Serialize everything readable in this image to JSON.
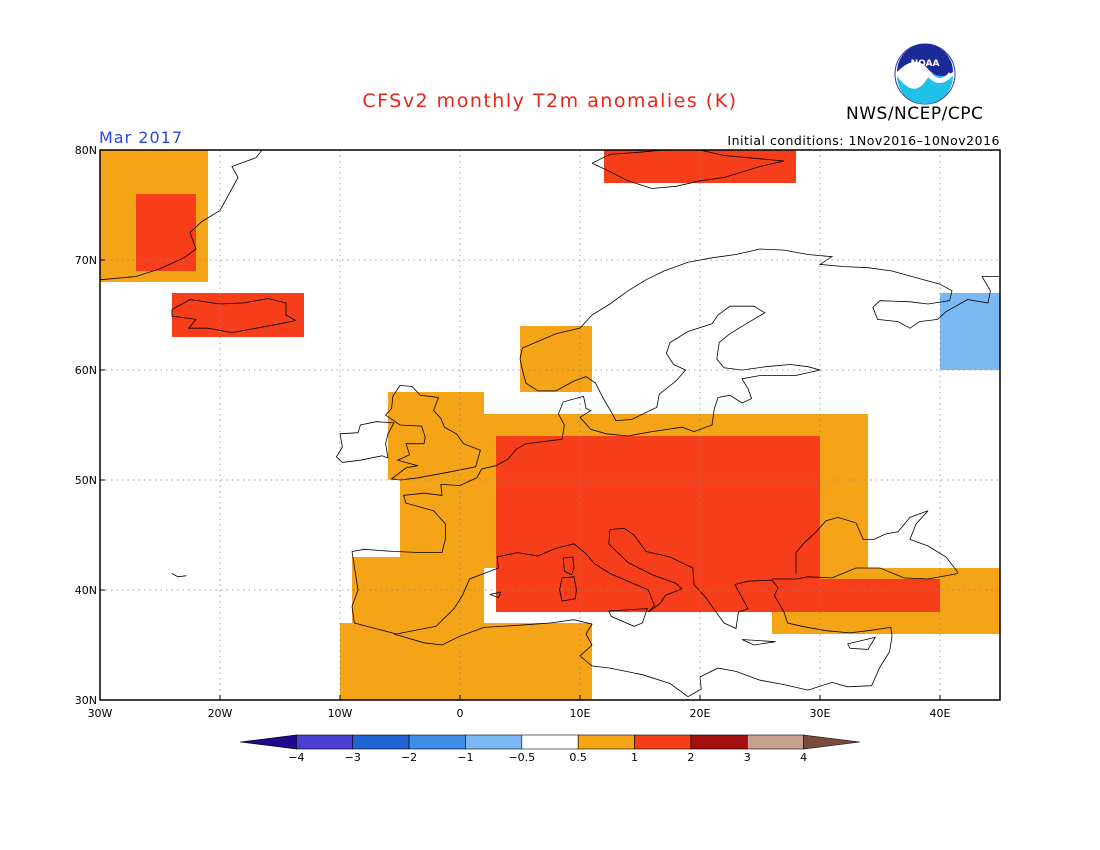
{
  "title": "CFSv2 monthly T2m anomalies (K)",
  "month": "Mar 2017",
  "initial_conditions": "Initial conditions: 1Nov2016–10Nov2016",
  "agency": "NWS/NCEP/CPC",
  "logo_text": "NOAA",
  "map": {
    "lon_range": [
      -30,
      45
    ],
    "lat_range": [
      30,
      80
    ],
    "lon_ticks": [
      "30W",
      "20W",
      "10W",
      "0",
      "10E",
      "20E",
      "30E",
      "40E"
    ],
    "lat_ticks": [
      "30N",
      "40N",
      "50N",
      "60N",
      "70N",
      "80N"
    ],
    "gridlines": "dotted"
  },
  "legend": {
    "labels": [
      "−4",
      "−3",
      "−2",
      "−1",
      "−0.5",
      "0.5",
      "1",
      "2",
      "3",
      "4"
    ],
    "colors": [
      "#1e0a8c",
      "#4a3fcf",
      "#1e62d4",
      "#3e8ee8",
      "#7cb9f4",
      "#ffffff",
      "#f5a418",
      "#f63f1a",
      "#a31010",
      "#c8a090",
      "#7a4a3a"
    ]
  },
  "colors": {
    "weak_warm": "#f5a418",
    "moderate_warm": "#f63f1a",
    "strong_warm": "#a31010",
    "weak_cold": "#7cb9f4"
  },
  "anomaly_regions": [
    {
      "level": "weak_warm",
      "area": "Greenland east coast",
      "lon": [
        -30,
        -21
      ],
      "lat": [
        68,
        80
      ]
    },
    {
      "level": "moderate_warm",
      "area": "Greenland east coast",
      "lon": [
        -27,
        -22
      ],
      "lat": [
        69,
        76
      ]
    },
    {
      "level": "moderate_warm",
      "area": "Iceland",
      "lon": [
        -24,
        -13
      ],
      "lat": [
        63,
        67
      ]
    },
    {
      "level": "moderate_warm",
      "area": "Svalbard",
      "lon": [
        12,
        28
      ],
      "lat": [
        77,
        80
      ]
    },
    {
      "level": "weak_warm",
      "area": "Norway",
      "lon": [
        5,
        11
      ],
      "lat": [
        58,
        64
      ]
    },
    {
      "level": "weak_warm",
      "area": "Britain and Ireland",
      "lon": [
        -6,
        2
      ],
      "lat": [
        50,
        58
      ]
    },
    {
      "level": "weak_warm",
      "area": "Western and central Europe",
      "lon": [
        -5,
        34
      ],
      "lat": [
        42,
        56
      ]
    },
    {
      "level": "moderate_warm",
      "area": "Central and southeastern Europe",
      "lon": [
        3,
        30
      ],
      "lat": [
        38,
        54
      ]
    },
    {
      "level": "weak_warm",
      "area": "Iberia",
      "lon": [
        -9,
        2
      ],
      "lat": [
        37,
        43
      ]
    },
    {
      "level": "weak_warm",
      "area": "North Africa",
      "lon": [
        -10,
        11
      ],
      "lat": [
        30,
        37
      ]
    },
    {
      "level": "weak_warm",
      "area": "Turkey",
      "lon": [
        26,
        45
      ],
      "lat": [
        36,
        42
      ]
    },
    {
      "level": "moderate_warm",
      "area": "Turkey",
      "lon": [
        27,
        40
      ],
      "lat": [
        38,
        41
      ]
    },
    {
      "level": "weak_cold",
      "area": "Northwestern Russia",
      "lon": [
        40,
        45
      ],
      "lat": [
        60,
        67
      ]
    }
  ]
}
